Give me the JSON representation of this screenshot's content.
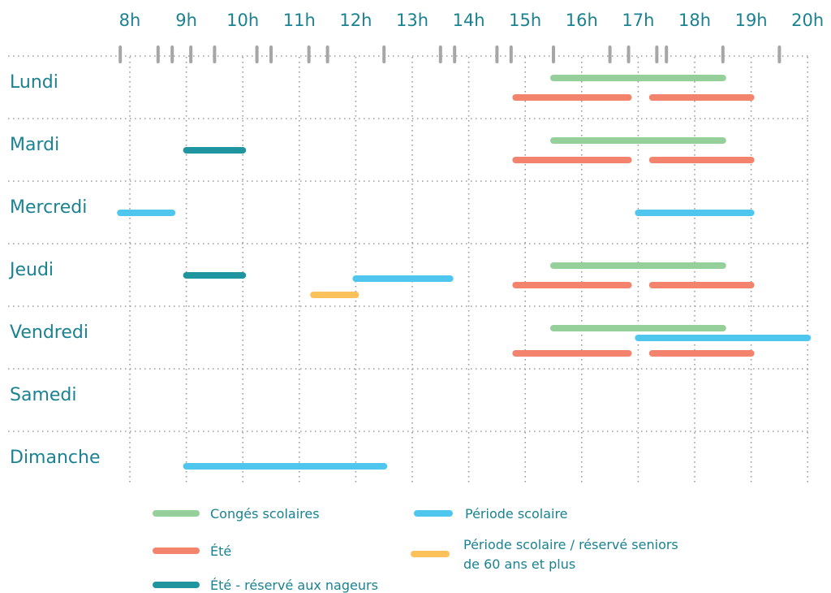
{
  "chart_data": {
    "type": "timeline",
    "title": "",
    "hours": [
      8,
      9,
      10,
      11,
      12,
      13,
      14,
      15,
      16,
      17,
      18,
      19,
      20
    ],
    "hour_labels": [
      "8h",
      "9h",
      "10h",
      "11h",
      "12h",
      "13h",
      "14h",
      "15h",
      "16h",
      "17h",
      "18h",
      "19h",
      "20h"
    ],
    "days": [
      "Lundi",
      "Mardi",
      "Mercredi",
      "Jeudi",
      "Vendredi",
      "Samedi",
      "Dimanche"
    ],
    "boundary_ticks": [
      7.83,
      8.5,
      8.75,
      9.08,
      9.5,
      10.25,
      10.5,
      11.17,
      11.5,
      12.5,
      13.5,
      13.75,
      14.5,
      14.75,
      15.5,
      16.5,
      16.83,
      17.33,
      17.5,
      18.5,
      19.5
    ],
    "series": [
      {
        "key": "conges",
        "name": "Congés scolaires",
        "color": "#95d09b"
      },
      {
        "key": "ete",
        "name": "Été",
        "color": "#f3836c"
      },
      {
        "key": "ete_nageurs",
        "name": "Été - réservé aux nageurs",
        "color": "#1f969f"
      },
      {
        "key": "scolaire",
        "name": "Période scolaire",
        "color": "#4fc6ee"
      },
      {
        "key": "seniors",
        "name": "Période scolaire / réservé seniors de 60 ans et plus",
        "name_lines": [
          "Période scolaire / réservé seniors",
          "de 60 ans et plus"
        ],
        "color": "#fbc25c"
      }
    ],
    "slots": [
      {
        "day": "Lundi",
        "series": "conges",
        "start": 15.5,
        "end": 18.5
      },
      {
        "day": "Lundi",
        "series": "ete",
        "start": 14.83,
        "end": 16.83
      },
      {
        "day": "Lundi",
        "series": "ete",
        "start": 17.25,
        "end": 19.0
      },
      {
        "day": "Mardi",
        "series": "conges",
        "start": 15.5,
        "end": 18.5
      },
      {
        "day": "Mardi",
        "series": "ete_nageurs",
        "start": 9.0,
        "end": 10.0
      },
      {
        "day": "Mardi",
        "series": "ete",
        "start": 14.83,
        "end": 16.83
      },
      {
        "day": "Mardi",
        "series": "ete",
        "start": 17.25,
        "end": 19.0
      },
      {
        "day": "Mercredi",
        "series": "scolaire",
        "start": 7.83,
        "end": 8.75
      },
      {
        "day": "Mercredi",
        "series": "scolaire",
        "start": 17.0,
        "end": 19.0
      },
      {
        "day": "Jeudi",
        "series": "conges",
        "start": 15.5,
        "end": 18.5
      },
      {
        "day": "Jeudi",
        "series": "ete_nageurs",
        "start": 9.0,
        "end": 10.0
      },
      {
        "day": "Jeudi",
        "series": "scolaire",
        "start": 12.0,
        "end": 13.67
      },
      {
        "day": "Jeudi",
        "series": "ete",
        "start": 14.83,
        "end": 16.83
      },
      {
        "day": "Jeudi",
        "series": "ete",
        "start": 17.25,
        "end": 19.0
      },
      {
        "day": "Jeudi",
        "series": "seniors",
        "start": 11.25,
        "end": 12.0
      },
      {
        "day": "Vendredi",
        "series": "conges",
        "start": 15.5,
        "end": 18.5
      },
      {
        "day": "Vendredi",
        "series": "scolaire",
        "start": 17.0,
        "end": 20.0
      },
      {
        "day": "Vendredi",
        "series": "ete",
        "start": 14.83,
        "end": 16.83
      },
      {
        "day": "Vendredi",
        "series": "ete",
        "start": 17.25,
        "end": 19.0
      },
      {
        "day": "Dimanche",
        "series": "scolaire",
        "start": 9.0,
        "end": 12.5
      }
    ]
  }
}
